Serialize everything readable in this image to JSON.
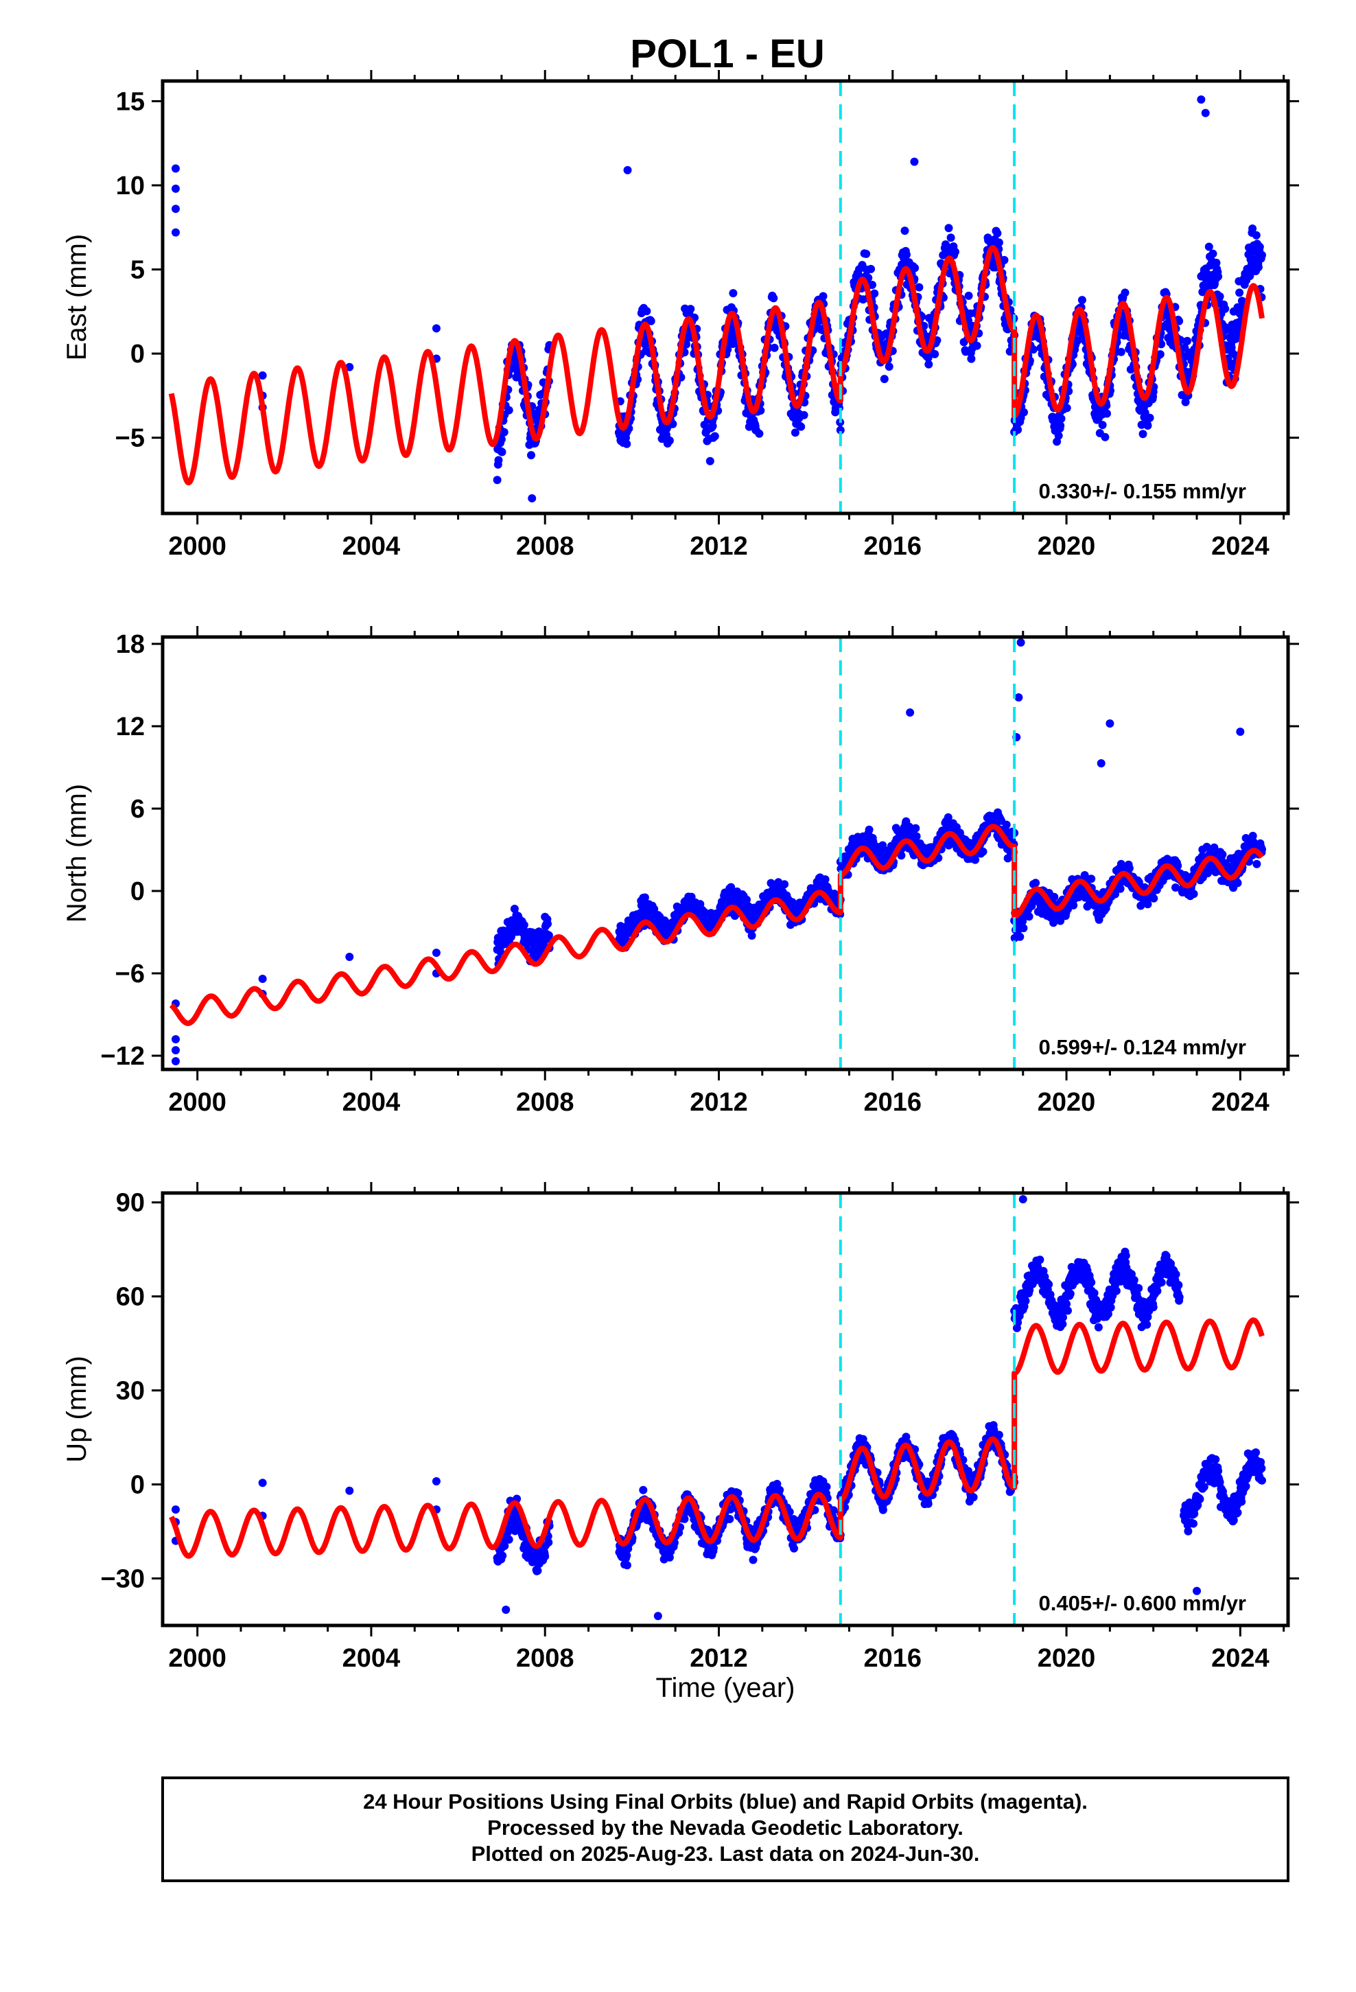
{
  "chart_data": {
    "title": "POL1 - EU",
    "type": "scatter",
    "colors": {
      "points": "#0000ff",
      "model": "#ff0000",
      "breaks": "#00e5ee",
      "frame": "#000000"
    },
    "x_ticks": [
      "2000",
      "2004",
      "2008",
      "2012",
      "2016",
      "2020",
      "2024"
    ],
    "xlim": [
      1999.2,
      2025.1
    ],
    "xlabel": "Time (year)",
    "break_epochs": [
      2014.8,
      2018.8
    ],
    "data_gaps": [
      [
        2008.1,
        2009.7
      ],
      [
        2018.8,
        2022.7
      ]
    ],
    "panels": [
      {
        "ylabel": "East (mm)",
        "ylim": [
          -9.5,
          16.2
        ],
        "y_ticks": [
          -5,
          0,
          5,
          10,
          15
        ],
        "rate_text": "0.330+/- 0.155 mm/yr",
        "segments": [
          {
            "x": [
              1999.4,
              2014.8
            ],
            "y": [
              -4.8,
              0.2
            ],
            "amplitude": 3.0
          },
          {
            "x": [
              2014.8,
              2018.8
            ],
            "y": [
              1.5,
              4.0
            ],
            "amplitude": 2.6
          },
          {
            "x": [
              2018.8,
              2024.5
            ],
            "y": [
              -0.8,
              1.2
            ],
            "amplitude": 2.9
          }
        ],
        "point_segments": [
          {
            "x": [
              2006.9,
              2008.1
            ],
            "y": [
              -4.0,
              -1.0
            ],
            "noise": 2.5
          },
          {
            "x": [
              2009.7,
              2014.8
            ],
            "y": [
              -1.8,
              -0.3
            ],
            "noise": 2.3
          },
          {
            "x": [
              2014.8,
              2018.8
            ],
            "y": [
              2.0,
              4.0
            ],
            "noise": 2.5
          },
          {
            "x": [
              2018.8,
              2022.5
            ],
            "y": [
              -1.5,
              -0.3
            ],
            "noise": 2.2
          },
          {
            "x": [
              2022.5,
              2024.5
            ],
            "y": [
              1.0,
              3.5
            ],
            "noise": 3.0
          }
        ],
        "outliers": [
          [
            1999.5,
            11.0
          ],
          [
            1999.5,
            9.8
          ],
          [
            1999.5,
            8.6
          ],
          [
            1999.5,
            7.2
          ],
          [
            2001.5,
            -1.3
          ],
          [
            2001.5,
            -2.5
          ],
          [
            2001.5,
            -3.2
          ],
          [
            2003.5,
            -0.8
          ],
          [
            2005.5,
            1.5
          ],
          [
            2005.5,
            -0.3
          ],
          [
            2009.9,
            10.9
          ],
          [
            2016.5,
            11.4
          ],
          [
            2023.1,
            15.1
          ],
          [
            2023.2,
            14.3
          ],
          [
            2007.7,
            -8.6
          ],
          [
            2008.1,
            0.5
          ]
        ]
      },
      {
        "ylabel": "North (mm)",
        "ylim": [
          -13,
          18.5
        ],
        "y_ticks": [
          -12,
          -6,
          0,
          6,
          12,
          18
        ],
        "rate_text": "0.599+/- 0.124 mm/yr",
        "segments": [
          {
            "x": [
              1999.4,
              2014.8
            ],
            "y": [
              -9.0,
              -0.7
            ],
            "amplitude": 0.85
          },
          {
            "x": [
              2014.8,
              2018.8
            ],
            "y": [
              2.0,
              4.1
            ],
            "amplitude": 0.85
          },
          {
            "x": [
              2018.8,
              2024.5
            ],
            "y": [
              -1.0,
              2.2
            ],
            "amplitude": 0.85
          }
        ],
        "point_segments": [
          {
            "x": [
              2006.9,
              2008.1
            ],
            "y": [
              -3.5,
              -3.0
            ],
            "noise": 1.8
          },
          {
            "x": [
              2009.7,
              2014.8
            ],
            "y": [
              -2.5,
              -0.3
            ],
            "noise": 1.5
          },
          {
            "x": [
              2014.8,
              2018.8
            ],
            "y": [
              2.5,
              4.2
            ],
            "noise": 1.6
          },
          {
            "x": [
              2018.8,
              2024.5
            ],
            "y": [
              -1.5,
              2.5
            ],
            "noise": 1.6
          }
        ],
        "outliers": [
          [
            1999.5,
            -10.8
          ],
          [
            1999.5,
            -11.6
          ],
          [
            1999.5,
            -12.4
          ],
          [
            1999.5,
            -8.2
          ],
          [
            2001.5,
            -6.4
          ],
          [
            2001.5,
            -7.5
          ],
          [
            2003.5,
            -4.8
          ],
          [
            2005.5,
            -4.5
          ],
          [
            2005.5,
            -6.0
          ],
          [
            2016.4,
            13.0
          ],
          [
            2018.95,
            18.1
          ],
          [
            2018.9,
            14.1
          ],
          [
            2018.85,
            11.2
          ],
          [
            2021.0,
            12.2
          ],
          [
            2024.0,
            11.6
          ],
          [
            2020.8,
            9.3
          ]
        ]
      },
      {
        "ylabel": "Up (mm)",
        "ylim": [
          -45,
          93
        ],
        "y_ticks": [
          -30,
          0,
          30,
          60,
          90
        ],
        "rate_text": "0.405+/- 0.600 mm/yr",
        "segments": [
          {
            "x": [
              1999.4,
              2014.8
            ],
            "y": [
              -16.0,
              -10.0
            ],
            "amplitude": 7.0
          },
          {
            "x": [
              2014.8,
              2018.8
            ],
            "y": [
              3.0,
              7.0
            ],
            "amplitude": 8.0
          },
          {
            "x": [
              2018.8,
              2024.5
            ],
            "y": [
              43.0,
              45.0
            ],
            "amplitude": 7.5
          }
        ],
        "point_segments": [
          {
            "x": [
              2006.9,
              2008.1
            ],
            "y": [
              -18.0,
              -16.0
            ],
            "noise": 8.0
          },
          {
            "x": [
              2009.7,
              2014.8
            ],
            "y": [
              -15.0,
              -8.0
            ],
            "noise": 7.0
          },
          {
            "x": [
              2014.8,
              2018.8
            ],
            "y": [
              3.0,
              8.0
            ],
            "noise": 7.0
          },
          {
            "x": [
              2018.8,
              2022.6
            ],
            "y": [
              61.0,
              63.0
            ],
            "noise": 7.5
          },
          {
            "x": [
              2022.7,
              2024.5
            ],
            "y": [
              -3.0,
              0.0
            ],
            "noise": 7.0
          }
        ],
        "outliers": [
          [
            1999.5,
            -8.0
          ],
          [
            1999.5,
            -12.0
          ],
          [
            1999.5,
            -18.0
          ],
          [
            2001.5,
            0.5
          ],
          [
            2001.5,
            -10.0
          ],
          [
            2003.5,
            -2.0
          ],
          [
            2005.5,
            1.0
          ],
          [
            2005.5,
            -8.0
          ],
          [
            2010.6,
            -42.0
          ],
          [
            2007.1,
            -40.0
          ],
          [
            2019.0,
            91.0
          ],
          [
            2023.0,
            -34.0
          ]
        ]
      }
    ]
  },
  "footer": {
    "line1": "24 Hour Positions Using Final Orbits (blue) and Rapid Orbits (magenta).",
    "line2": "Processed by the Nevada Geodetic Laboratory.",
    "line3": "Plotted on 2025-Aug-23. Last data on 2024-Jun-30."
  }
}
